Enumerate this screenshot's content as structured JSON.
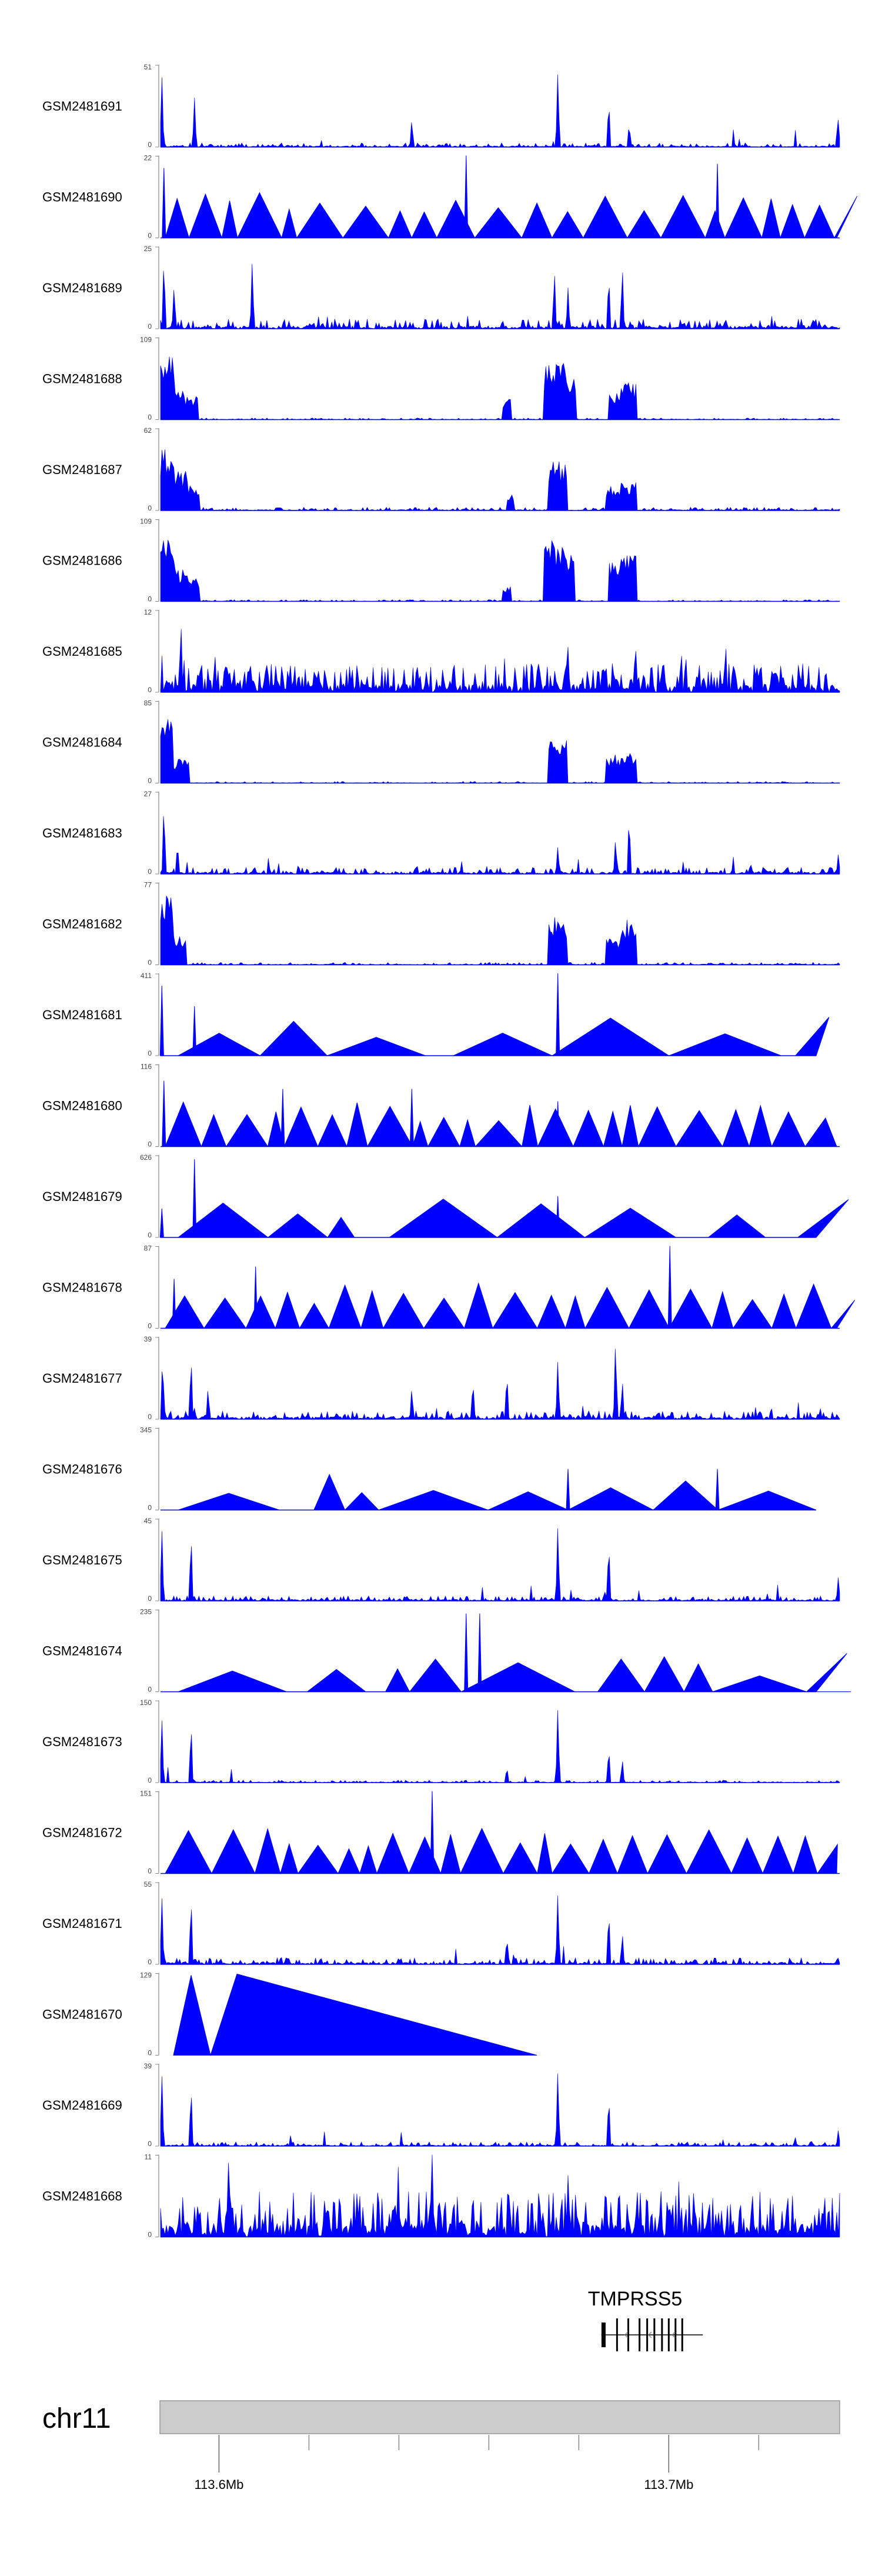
{
  "chart_data": {
    "type": "area",
    "title": "",
    "chromosome": "chr11",
    "region_mb": [
      113.587,
      113.738
    ],
    "axis_ticks": [
      {
        "pos": 113.6,
        "label": "113.6Mb"
      },
      {
        "pos": 113.7,
        "label": "113.7Mb"
      }
    ],
    "minor_ticks": [
      113.62,
      113.64,
      113.66,
      113.68,
      113.72
    ],
    "gene": {
      "name": "TMPRSS5",
      "start_mb": 113.685,
      "end_mb": 113.706,
      "exons_mb": [
        113.6855,
        113.6885,
        113.691,
        113.6935,
        113.6952,
        113.6968,
        113.6985,
        113.7,
        113.7015,
        113.703
      ],
      "strand": "-"
    },
    "track_color": "#0000ff",
    "tracks": [
      {
        "name": "GSM2481691",
        "ymax": 51,
        "style": "signal",
        "base": 0.05,
        "peaks": [
          [
            0.002,
            0.9
          ],
          [
            0.05,
            0.6
          ],
          [
            0.37,
            0.35
          ],
          [
            0.585,
            0.95
          ],
          [
            0.66,
            0.6
          ],
          [
            0.69,
            0.3
          ],
          [
            0.998,
            0.35
          ]
        ]
      },
      {
        "name": "GSM2481690",
        "ymax": 22,
        "style": "tri",
        "seed": 7,
        "spikes": [
          [
            0.005,
            0.85
          ],
          [
            0.45,
            1.0
          ],
          [
            0.82,
            0.9
          ]
        ]
      },
      {
        "name": "GSM2481689",
        "ymax": 25,
        "style": "signal",
        "base": 0.12,
        "peaks": [
          [
            0.005,
            0.9
          ],
          [
            0.02,
            0.55
          ],
          [
            0.135,
            0.85
          ],
          [
            0.58,
            0.75
          ],
          [
            0.6,
            0.5
          ],
          [
            0.66,
            0.7
          ],
          [
            0.68,
            0.8
          ]
        ]
      },
      {
        "name": "GSM2481688",
        "ymax": 109,
        "style": "block",
        "base": 0.02,
        "peaks": [
          [
            0.005,
            0.8,
            0.015
          ],
          [
            0.02,
            0.35,
            0.015
          ],
          [
            0.04,
            0.3,
            0.015
          ],
          [
            0.51,
            0.25,
            0.006
          ],
          [
            0.58,
            0.7,
            0.015
          ],
          [
            0.6,
            0.6,
            0.012
          ],
          [
            0.675,
            0.35,
            0.015
          ],
          [
            0.69,
            0.45,
            0.012
          ]
        ]
      },
      {
        "name": "GSM2481687",
        "ymax": 62,
        "style": "block",
        "base": 0.04,
        "peaks": [
          [
            0.005,
            0.75,
            0.015
          ],
          [
            0.025,
            0.5,
            0.015
          ],
          [
            0.045,
            0.3,
            0.012
          ],
          [
            0.515,
            0.2,
            0.006
          ],
          [
            0.585,
            0.6,
            0.014
          ],
          [
            0.67,
            0.3,
            0.014
          ],
          [
            0.69,
            0.35,
            0.012
          ]
        ]
      },
      {
        "name": "GSM2481686",
        "ymax": 109,
        "style": "block",
        "base": 0.02,
        "peaks": [
          [
            0.005,
            0.8,
            0.015
          ],
          [
            0.025,
            0.4,
            0.015
          ],
          [
            0.045,
            0.3,
            0.012
          ],
          [
            0.51,
            0.2,
            0.006
          ],
          [
            0.58,
            0.75,
            0.015
          ],
          [
            0.6,
            0.6,
            0.01
          ],
          [
            0.675,
            0.5,
            0.015
          ],
          [
            0.69,
            0.6,
            0.012
          ]
        ]
      },
      {
        "name": "GSM2481685",
        "ymax": 12,
        "style": "dense",
        "amp": 0.35,
        "peaks": [
          [
            0.03,
            0.9
          ],
          [
            0.08,
            0.5
          ],
          [
            0.6,
            0.55
          ],
          [
            0.7,
            0.5
          ]
        ]
      },
      {
        "name": "GSM2481684",
        "ymax": 85,
        "style": "block",
        "base": 0.02,
        "peaks": [
          [
            0.005,
            0.85,
            0.013
          ],
          [
            0.03,
            0.3,
            0.012
          ],
          [
            0.585,
            0.55,
            0.015
          ],
          [
            0.67,
            0.35,
            0.014
          ],
          [
            0.69,
            0.4,
            0.012
          ]
        ]
      },
      {
        "name": "GSM2481683",
        "ymax": 27,
        "style": "signal",
        "base": 0.08,
        "peaks": [
          [
            0.005,
            0.9
          ],
          [
            0.025,
            0.4
          ],
          [
            0.585,
            0.35
          ],
          [
            0.67,
            0.45
          ],
          [
            0.69,
            0.75
          ],
          [
            0.998,
            0.25
          ]
        ]
      },
      {
        "name": "GSM2481682",
        "ymax": 77,
        "style": "block",
        "base": 0.03,
        "peaks": [
          [
            0.005,
            0.9,
            0.013
          ],
          [
            0.025,
            0.35,
            0.012
          ],
          [
            0.585,
            0.6,
            0.014
          ],
          [
            0.67,
            0.35,
            0.014
          ],
          [
            0.69,
            0.55,
            0.012
          ]
        ]
      },
      {
        "name": "GSM2481681",
        "ymax": 411,
        "style": "tri",
        "seed": 13,
        "spikes": [
          [
            0.002,
            0.85
          ],
          [
            0.05,
            0.6
          ],
          [
            0.585,
            1.0
          ]
        ],
        "wide": true
      },
      {
        "name": "GSM2481680",
        "ymax": 116,
        "style": "tri",
        "seed": 21,
        "spikes": [
          [
            0.005,
            0.8
          ],
          [
            0.18,
            0.7
          ],
          [
            0.37,
            0.7
          ],
          [
            0.585,
            0.55
          ]
        ]
      },
      {
        "name": "GSM2481679",
        "ymax": 626,
        "style": "tri",
        "seed": 33,
        "spikes": [
          [
            0.002,
            0.35
          ],
          [
            0.05,
            0.95
          ],
          [
            0.585,
            0.5
          ]
        ],
        "wide": true
      },
      {
        "name": "GSM2481678",
        "ymax": 87,
        "style": "tri",
        "seed": 41,
        "spikes": [
          [
            0.02,
            0.6
          ],
          [
            0.14,
            0.75
          ],
          [
            0.75,
            1.0
          ]
        ]
      },
      {
        "name": "GSM2481677",
        "ymax": 39,
        "style": "signal",
        "base": 0.1,
        "peaks": [
          [
            0.003,
            0.8
          ],
          [
            0.045,
            0.8
          ],
          [
            0.07,
            0.4
          ],
          [
            0.37,
            0.4
          ],
          [
            0.46,
            0.5
          ],
          [
            0.51,
            0.6
          ],
          [
            0.585,
            0.75
          ],
          [
            0.67,
            1.0
          ],
          [
            0.68,
            0.5
          ]
        ]
      },
      {
        "name": "GSM2481676",
        "ymax": 345,
        "style": "tri",
        "seed": 55,
        "spikes": [
          [
            0.6,
            0.5
          ],
          [
            0.82,
            0.5
          ]
        ],
        "wide": true
      },
      {
        "name": "GSM2481675",
        "ymax": 45,
        "style": "signal",
        "base": 0.06,
        "peaks": [
          [
            0.002,
            0.9
          ],
          [
            0.045,
            0.85
          ],
          [
            0.585,
            0.95
          ],
          [
            0.66,
            0.75
          ],
          [
            0.998,
            0.3
          ]
        ]
      },
      {
        "name": "GSM2481674",
        "ymax": 235,
        "style": "tri",
        "seed": 61,
        "spikes": [
          [
            0.45,
            0.95
          ],
          [
            0.47,
            0.95
          ]
        ],
        "wide": true
      },
      {
        "name": "GSM2481673",
        "ymax": 150,
        "style": "signal",
        "base": 0.03,
        "peaks": [
          [
            0.002,
            0.8
          ],
          [
            0.045,
            0.75
          ],
          [
            0.51,
            0.2
          ],
          [
            0.585,
            0.95
          ],
          [
            0.66,
            0.45
          ],
          [
            0.68,
            0.3
          ]
        ]
      },
      {
        "name": "GSM2481672",
        "ymax": 151,
        "style": "tri",
        "seed": 71,
        "spikes": [
          [
            0.4,
            1.0
          ]
        ]
      },
      {
        "name": "GSM2481671",
        "ymax": 55,
        "style": "signal",
        "base": 0.08,
        "peaks": [
          [
            0.002,
            0.85
          ],
          [
            0.045,
            0.85
          ],
          [
            0.51,
            0.35
          ],
          [
            0.585,
            0.9
          ],
          [
            0.66,
            0.7
          ],
          [
            0.68,
            0.4
          ]
        ]
      },
      {
        "name": "GSM2481670",
        "ymax": 129,
        "style": "bigtri"
      },
      {
        "name": "GSM2481669",
        "ymax": 39,
        "style": "signal",
        "base": 0.05,
        "peaks": [
          [
            0.002,
            0.9
          ],
          [
            0.045,
            0.75
          ],
          [
            0.585,
            0.95
          ],
          [
            0.66,
            0.65
          ],
          [
            0.998,
            0.2
          ]
        ]
      },
      {
        "name": "GSM2481668",
        "ymax": 11,
        "style": "dense",
        "amp": 0.55,
        "peaks": [
          [
            0.1,
            0.9
          ],
          [
            0.35,
            0.85
          ],
          [
            0.4,
            1.0
          ],
          [
            0.6,
            0.75
          ]
        ]
      }
    ]
  }
}
